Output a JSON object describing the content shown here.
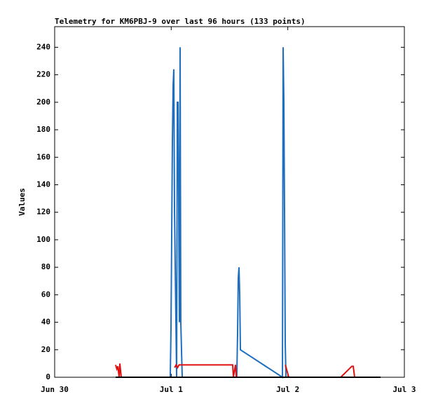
{
  "chart_data": {
    "type": "line",
    "title": "Telemetry for KM6PBJ-9 over last 96 hours (133 points)",
    "y_label": "Values",
    "xlim": [
      0,
      72
    ],
    "xticks": [
      {
        "value": 0,
        "label": "Jun 30"
      },
      {
        "value": 24,
        "label": "Jul 1"
      },
      {
        "value": 48,
        "label": "Jul 2"
      },
      {
        "value": 72,
        "label": "Jul 3"
      }
    ],
    "ylim": [
      0,
      255
    ],
    "yticks": [
      0,
      20,
      40,
      60,
      80,
      100,
      120,
      140,
      160,
      180,
      200,
      220,
      240
    ],
    "series": [
      {
        "color": "#1f6fbf",
        "x": [
          23.8,
          23.95,
          24.1,
          24.24,
          24.39,
          24.53,
          24.68,
          25.11,
          25.25,
          25.4,
          25.54,
          25.68,
          25.83,
          25.97,
          26.26,
          37.5,
          37.66,
          37.8,
          37.95,
          38.1,
          38.24,
          46.9,
          47.04,
          47.19,
          47.33,
          47.47,
          47.62
        ],
        "values": [
          0,
          35,
          104,
          172,
          212,
          224,
          120,
          0,
          200,
          200,
          120,
          40,
          240,
          40,
          0,
          0,
          32,
          72,
          80,
          60,
          20,
          0,
          240,
          200,
          120,
          25,
          0
        ]
      },
      {
        "color": "#e01010",
        "x": [
          12.55,
          12.8,
          13.0,
          13.28,
          13.42,
          13.71,
          13.8,
          24.7,
          25.0,
          25.3,
          25.6,
          36.65,
          36.8,
          37.23,
          37.4,
          47.2,
          47.5,
          48.2,
          58.9,
          61.19,
          61.47,
          61.76
        ],
        "values": [
          9,
          6,
          8,
          0,
          10,
          0,
          null,
          7,
          9,
          7,
          9,
          9,
          0,
          9,
          0,
          null,
          9,
          0,
          0,
          8,
          8,
          0
        ]
      },
      {
        "color": "#000000",
        "x": [
          12.55,
          67.1
        ],
        "values": [
          0,
          0
        ]
      }
    ]
  }
}
